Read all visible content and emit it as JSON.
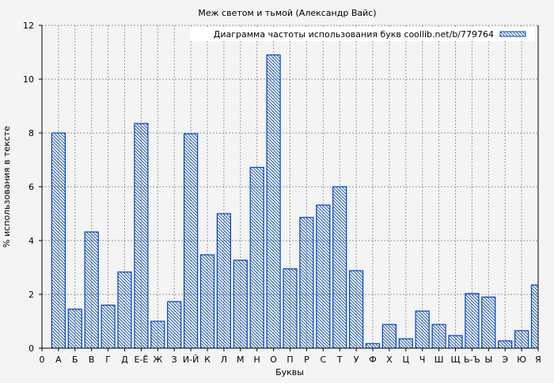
{
  "chart_data": {
    "type": "bar",
    "title": "Меж светом и тьмой (Александр Вайс)",
    "xlabel": "Буквы",
    "ylabel": "% использования в тексте",
    "x_tick_labels": [
      "0",
      "А",
      "Б",
      "В",
      "Г",
      "Д",
      "Е-Ё",
      "Ж",
      "З",
      "И-Й",
      "К",
      "Л",
      "М",
      "Н",
      "О",
      "П",
      "Р",
      "С",
      "Т",
      "У",
      "Ф",
      "Х",
      "Ц",
      "Ч",
      "Ш",
      "Щ",
      "Ь-Ъ",
      "Ы",
      "Э",
      "Ю",
      "Я"
    ],
    "categories": [
      "А",
      "Б",
      "В",
      "Г",
      "Д",
      "Е-Ё",
      "Ж",
      "З",
      "И-Й",
      "К",
      "Л",
      "М",
      "Н",
      "О",
      "П",
      "Р",
      "С",
      "Т",
      "У",
      "Ф",
      "Х",
      "Ц",
      "Ч",
      "Ш",
      "Щ",
      "Ь-Ъ",
      "Ы",
      "Э",
      "Ю",
      "Я"
    ],
    "series": [
      {
        "name": "Диаграмма частоты использования букв coollib.net/b/779764",
        "values": [
          8.0,
          1.45,
          4.32,
          1.6,
          2.83,
          8.35,
          1.0,
          1.73,
          7.97,
          3.47,
          5.0,
          3.27,
          6.72,
          10.9,
          2.95,
          4.86,
          5.32,
          6.0,
          2.88,
          0.17,
          0.88,
          0.35,
          1.38,
          0.88,
          0.47,
          2.03,
          1.9,
          0.27,
          0.65,
          2.35
        ]
      }
    ],
    "ylim": [
      0,
      12
    ],
    "y_ticks": [
      0,
      2,
      4,
      6,
      8,
      10,
      12
    ],
    "grid": true,
    "legend": "top-right",
    "colors": {
      "bar": "#0044bb",
      "background": "#f4f4f4",
      "grid": "#999999"
    }
  }
}
